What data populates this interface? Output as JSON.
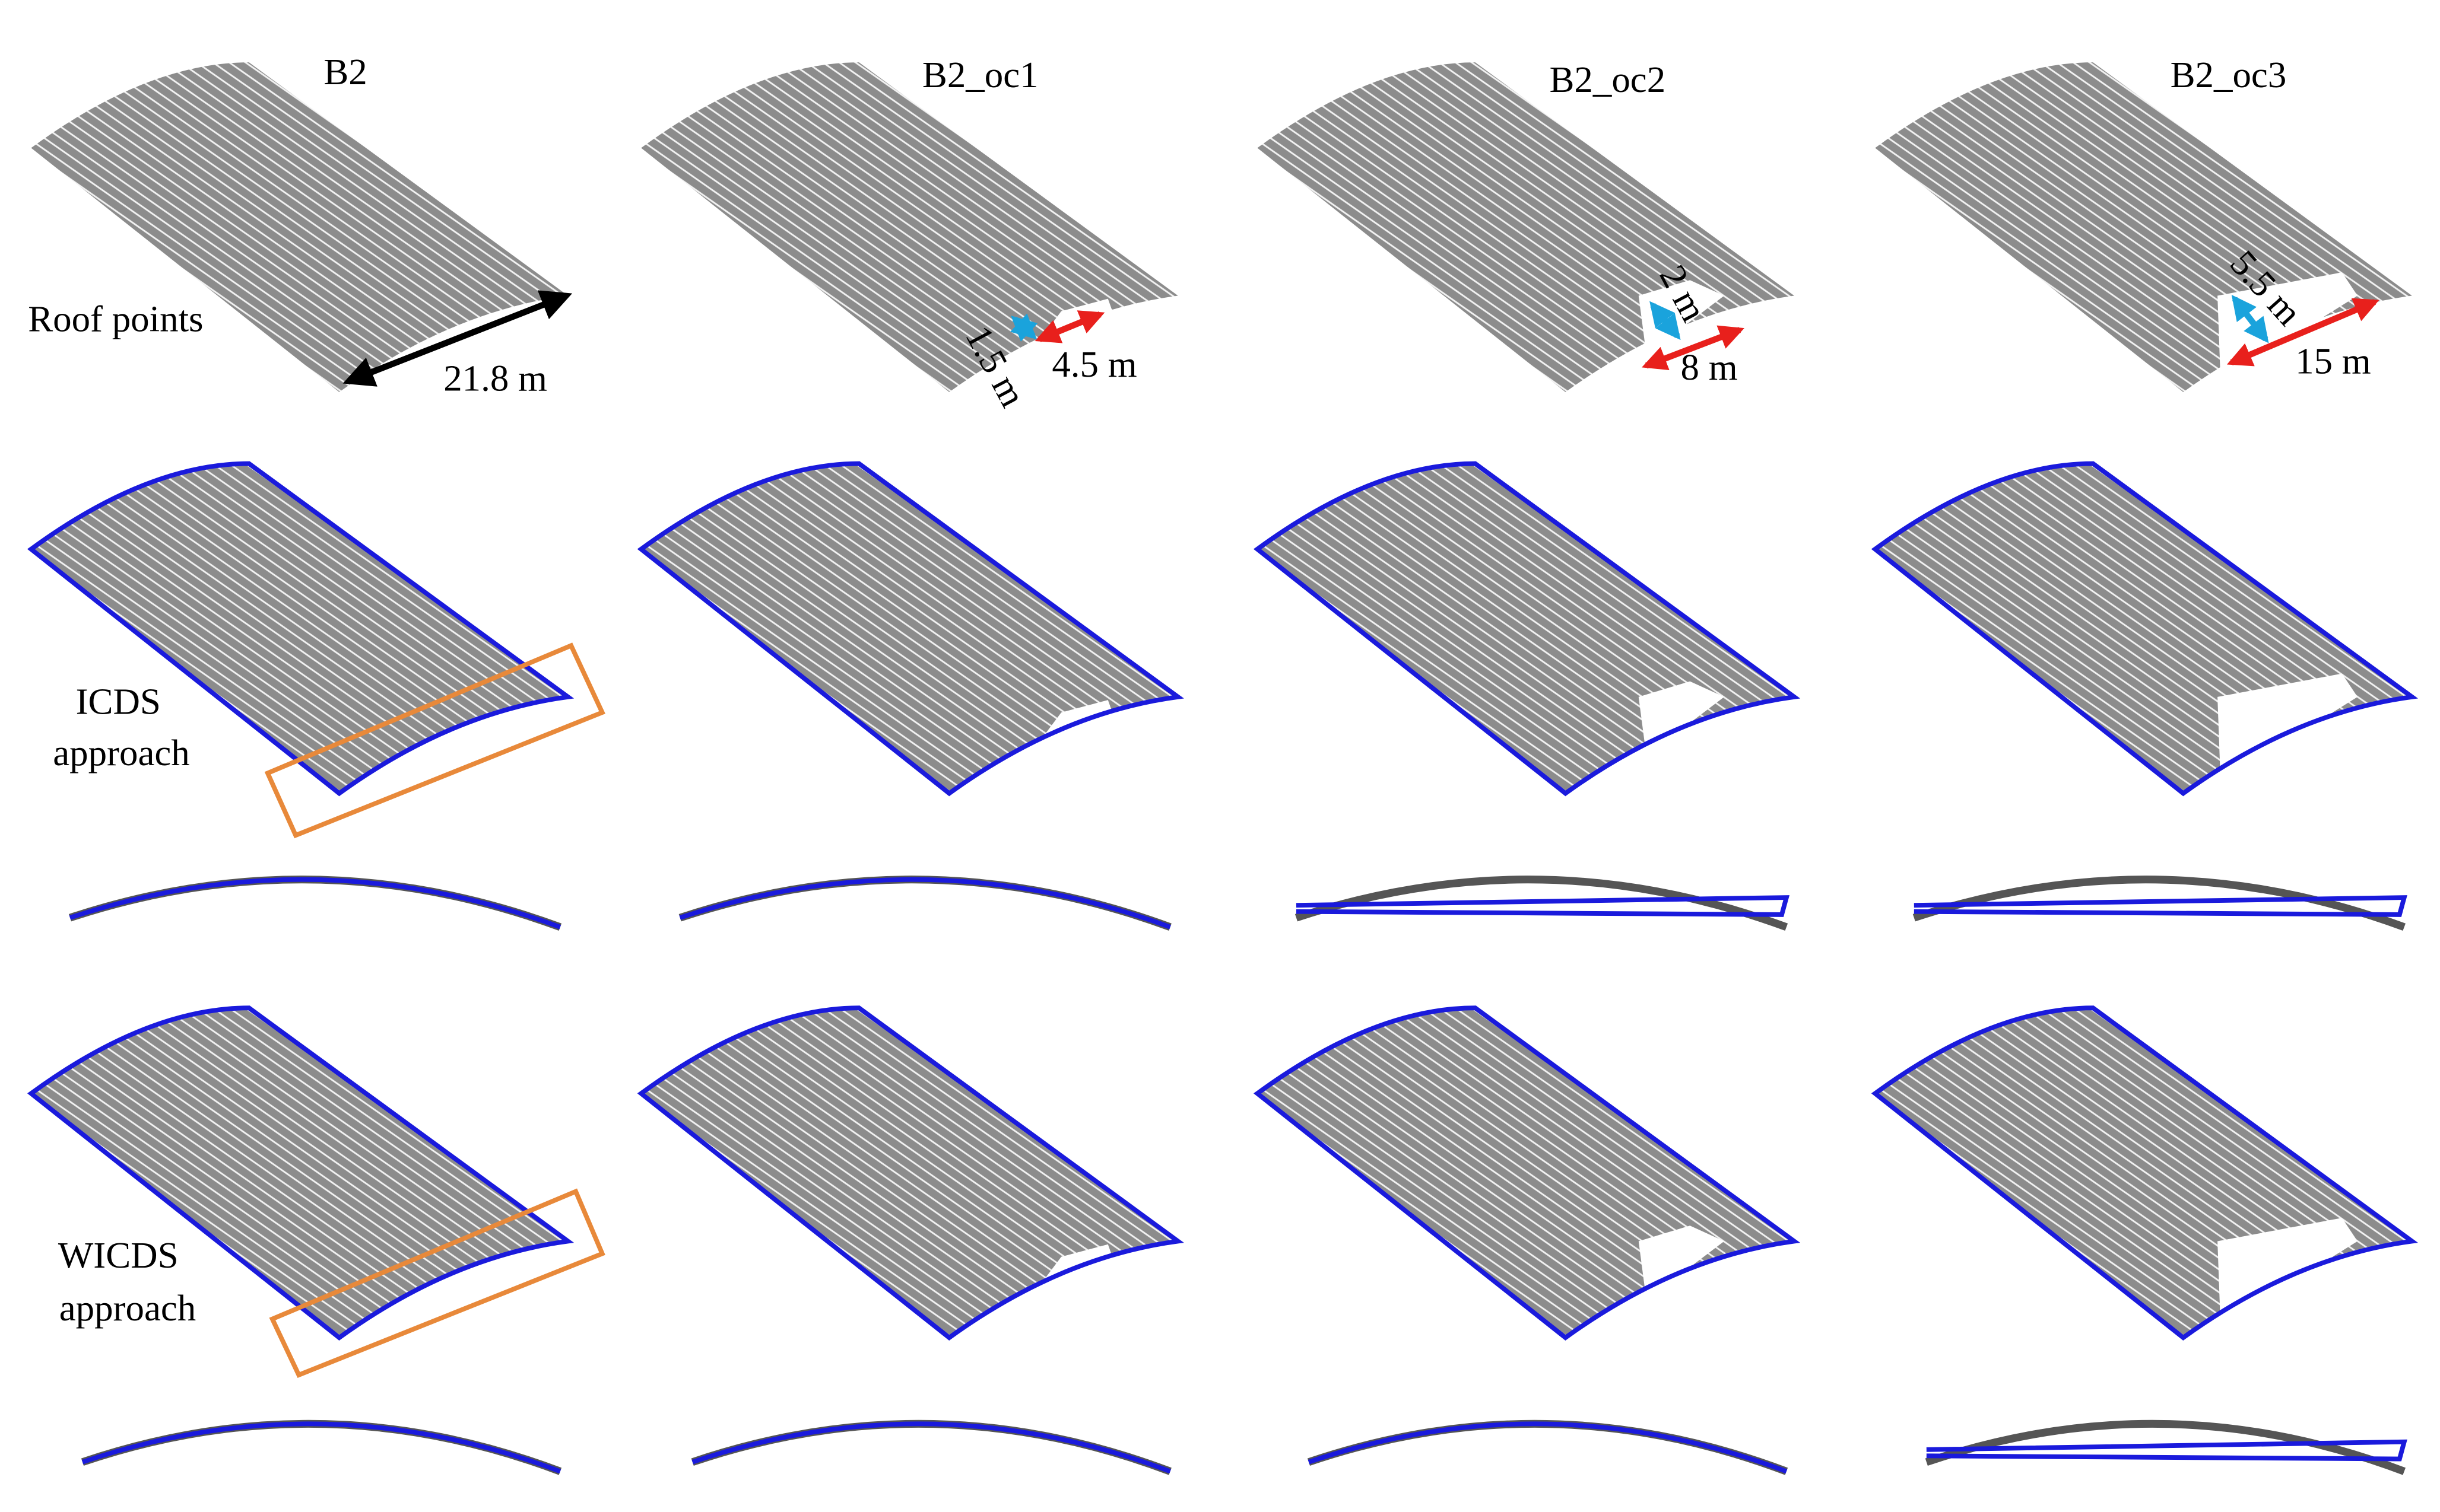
{
  "columns": [
    "B2",
    "B2_oc1",
    "B2_oc2",
    "B2_oc3"
  ],
  "rows": {
    "roof_points": "Roof points",
    "icds": [
      "ICDS",
      "approach"
    ],
    "wicds": [
      "WICDS",
      "approach"
    ]
  },
  "dimensions": {
    "b2_length": "21.8 m",
    "oc1": {
      "width": "1.5 m",
      "length": "4.5 m"
    },
    "oc2": {
      "width": "2 m",
      "length": "8 m"
    },
    "oc3": {
      "width": "5.5 m",
      "length": "15 m"
    }
  }
}
